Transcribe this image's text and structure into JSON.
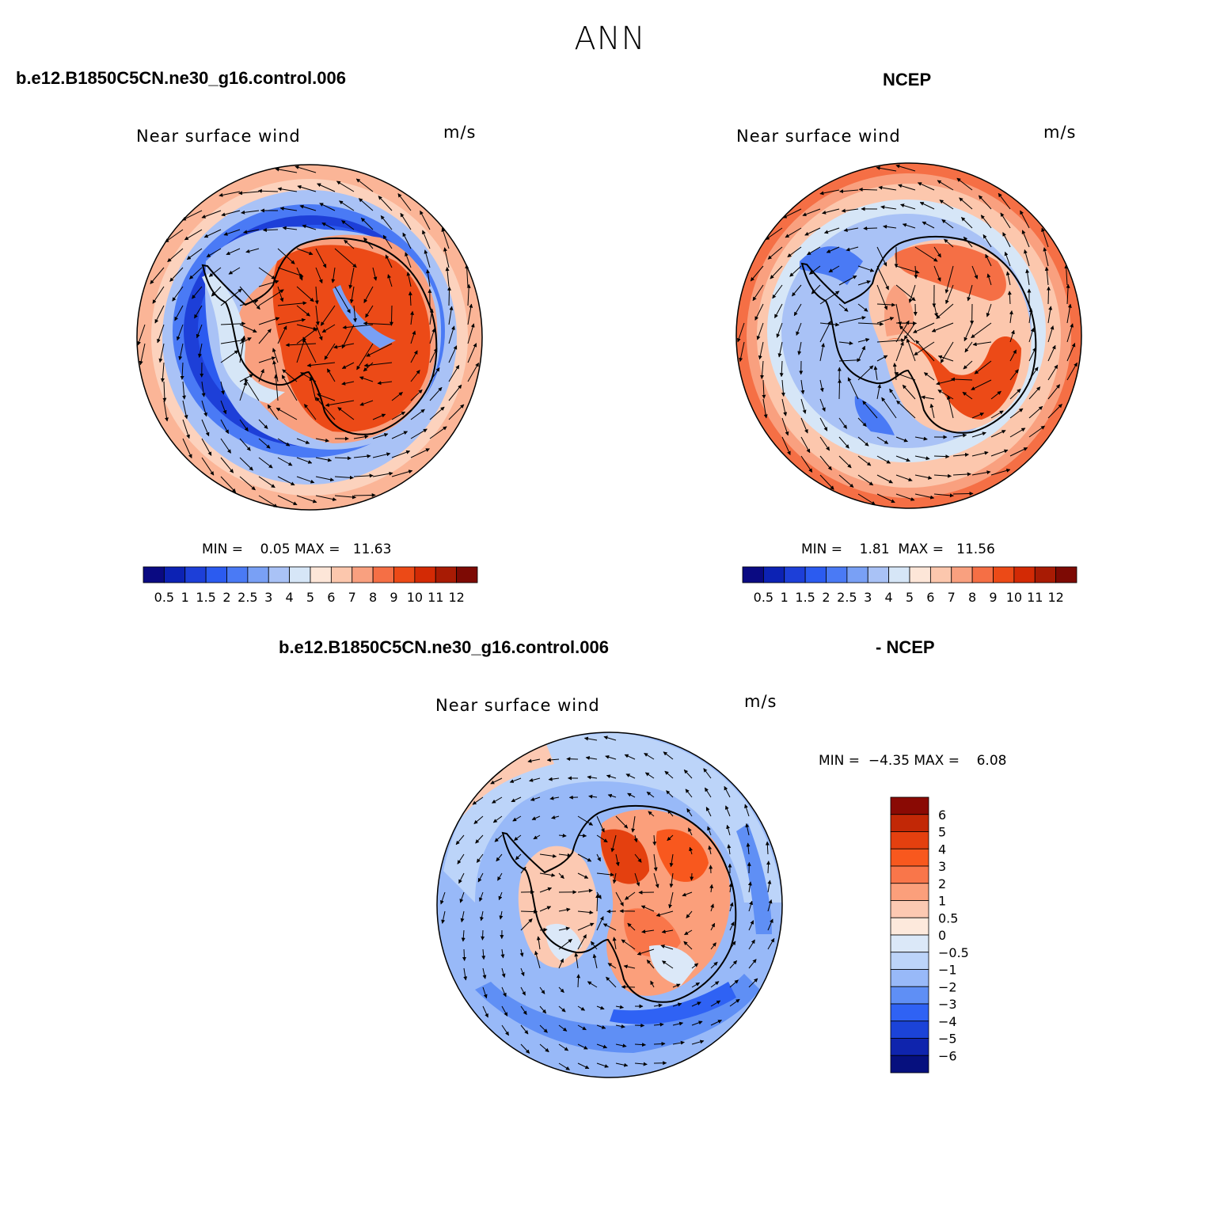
{
  "title": "ANN",
  "panels": [
    {
      "id": "model",
      "case_label": "b.e12.B1850C5CN.ne30_g16.control.006",
      "variable": "Near surface wind",
      "units": "m/s",
      "min_label": "MIN =",
      "min_value": "0.05",
      "max_label": "MAX =",
      "max_value": "11.63"
    },
    {
      "id": "obs",
      "case_label": "NCEP",
      "variable": "Near surface wind",
      "units": "m/s",
      "min_label": "MIN =",
      "min_value": "1.81",
      "max_label": "MAX =",
      "max_value": "11.56"
    },
    {
      "id": "diff",
      "case_label_left": "b.e12.B1850C5CN.ne30_g16.control.006",
      "case_label_right": "- NCEP",
      "variable": "Near surface wind",
      "units": "m/s",
      "min_label": "MIN =",
      "min_value": "−4.35",
      "max_label": "MAX =",
      "max_value": "6.08"
    }
  ],
  "colorbar_speed": {
    "tick_labels": [
      "0.5",
      "1",
      "1.5",
      "2",
      "2.5",
      "3",
      "4",
      "5",
      "6",
      "7",
      "8",
      "9",
      "10",
      "11",
      "12"
    ],
    "colors": [
      "#0a0a82",
      "#0c22b4",
      "#1d3fd8",
      "#2b5bf0",
      "#4a7af5",
      "#79a0f5",
      "#a9c2f6",
      "#d6e6f7",
      "#fde6d8",
      "#fcc7ad",
      "#f9a07f",
      "#f56f45",
      "#ec4a17",
      "#d32a05",
      "#a81b04",
      "#7d0a04"
    ]
  },
  "colorbar_diff": {
    "tick_labels": [
      "6",
      "5",
      "4",
      "3",
      "2",
      "1",
      "0.5",
      "0",
      "−0.5",
      "−1",
      "−2",
      "−3",
      "−4",
      "−5",
      "−6"
    ],
    "colors": [
      "#8a0a04",
      "#c22806",
      "#e4400f",
      "#f8581e",
      "#f9764a",
      "#fb9f7b",
      "#fcc9b2",
      "#fde9dc",
      "#dbe8f8",
      "#bcd4f9",
      "#98b9f8",
      "#5f8ff5",
      "#2f62f4",
      "#1b43d8",
      "#0f24ad",
      "#06107e"
    ]
  },
  "icons": [
    "wind-vector-arrow-icon"
  ]
}
